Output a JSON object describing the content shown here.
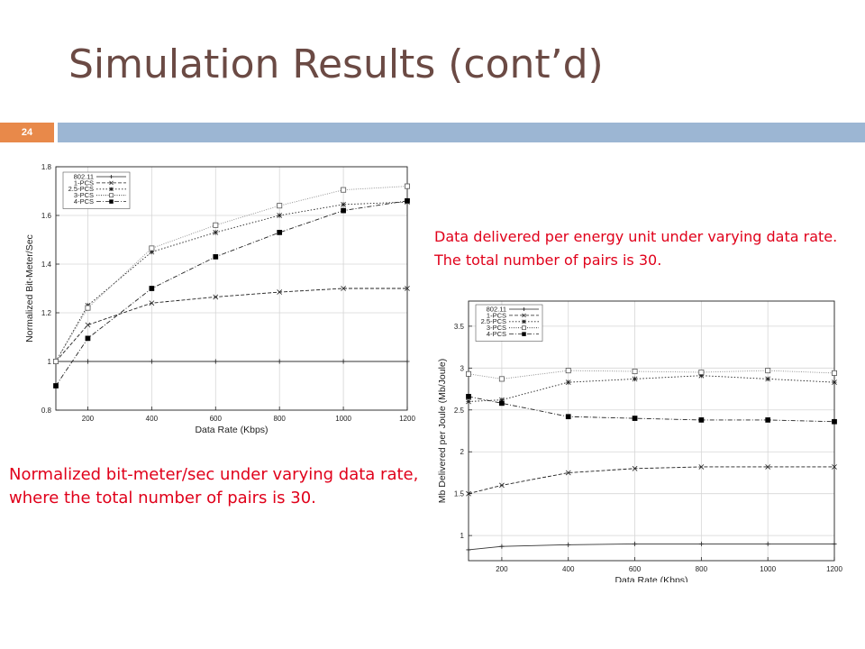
{
  "slide": {
    "title": "Simulation Results (cont’d)",
    "number": "24",
    "caption_top": "Data delivered per energy unit under varying data rate. The total number of pairs is 30.",
    "caption_bottom": "Normalized bit-meter/sec under varying data rate, where the total number of pairs is 30."
  },
  "chart_data": [
    {
      "type": "line",
      "xlabel": "Data Rate (Kbps)",
      "ylabel": "Normalized Bit-Meter/Sec",
      "xlim": [
        100,
        1200
      ],
      "ylim": [
        0.8,
        1.8
      ],
      "xticks": [
        200,
        400,
        600,
        800,
        1000,
        1200
      ],
      "yticks": [
        0.8,
        1,
        1.2,
        1.4,
        1.6,
        1.8
      ],
      "grid": true,
      "legend_position": "top-left",
      "x": [
        100,
        200,
        400,
        600,
        800,
        1000,
        1200
      ],
      "series": [
        {
          "name": "802.11",
          "marker": "plus",
          "dash": "",
          "values": [
            1,
            1,
            1,
            1,
            1,
            1,
            1
          ]
        },
        {
          "name": "1-PCS",
          "marker": "x",
          "dash": "4,2",
          "values": [
            1,
            1.15,
            1.24,
            1.265,
            1.285,
            1.3,
            1.3
          ]
        },
        {
          "name": "2.5-PCS",
          "marker": "star",
          "dash": "1.5,2",
          "values": [
            1,
            1.23,
            1.45,
            1.53,
            1.6,
            1.645,
            1.655
          ]
        },
        {
          "name": "3-PCS",
          "marker": "square-open",
          "dash": "1,1.5",
          "values": [
            1,
            1.22,
            1.465,
            1.56,
            1.64,
            1.705,
            1.72
          ]
        },
        {
          "name": "4-PCS",
          "marker": "square-filled",
          "dash": "5,2,1,2",
          "values": [
            0.9,
            1.095,
            1.3,
            1.43,
            1.53,
            1.62,
            1.66
          ]
        }
      ]
    },
    {
      "type": "line",
      "xlabel": "Data Rate (Kbps)",
      "ylabel": "Mb Delivered per Joule (Mb/Joule)",
      "xlim": [
        100,
        1200
      ],
      "ylim": [
        0.7,
        3.8
      ],
      "xticks": [
        200,
        400,
        600,
        800,
        1000,
        1200
      ],
      "yticks": [
        1,
        1.5,
        2,
        2.5,
        3,
        3.5
      ],
      "grid": true,
      "legend_position": "top-left",
      "x": [
        100,
        200,
        400,
        600,
        800,
        1000,
        1200
      ],
      "series": [
        {
          "name": "802.11",
          "marker": "plus",
          "dash": "",
          "values": [
            0.83,
            0.87,
            0.89,
            0.9,
            0.9,
            0.9,
            0.9
          ]
        },
        {
          "name": "1-PCS",
          "marker": "x",
          "dash": "4,2",
          "values": [
            1.5,
            1.6,
            1.75,
            1.8,
            1.82,
            1.82,
            1.82
          ]
        },
        {
          "name": "2.5-PCS",
          "marker": "star",
          "dash": "1.5,2",
          "values": [
            2.6,
            2.62,
            2.83,
            2.87,
            2.91,
            2.87,
            2.83
          ]
        },
        {
          "name": "3-PCS",
          "marker": "square-open",
          "dash": "1,1.5",
          "values": [
            2.93,
            2.87,
            2.97,
            2.96,
            2.95,
            2.97,
            2.94
          ]
        },
        {
          "name": "4-PCS",
          "marker": "square-filled",
          "dash": "5,2,1,2",
          "values": [
            2.66,
            2.58,
            2.42,
            2.4,
            2.38,
            2.38,
            2.36
          ]
        }
      ]
    }
  ]
}
